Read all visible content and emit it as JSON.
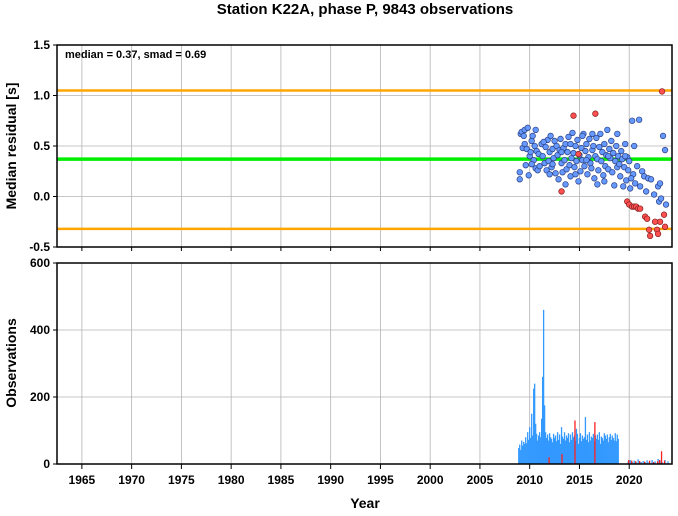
{
  "title": "Station K22A, phase P, 9843 observations",
  "colors": {
    "grid": "#b4b4b4",
    "median_line": "#00ee00",
    "smad_lines": "#ffa500",
    "point_good": "#6699ff",
    "point_outlier": "#ff5050",
    "bars_good": "#3399ff",
    "bars_outlier": "#ff2020"
  },
  "chart_data": [
    {
      "type": "scatter",
      "name": "residuals",
      "ylabel": "Median residual [s]",
      "xlim": [
        1962.5,
        2024.3
      ],
      "ylim": [
        -0.5,
        1.5
      ],
      "y_ticks": [
        "-0.5",
        "0.0",
        "0.5",
        "1.0",
        "1.5"
      ],
      "y_tick_values": [
        -0.5,
        0.0,
        0.5,
        1.0,
        1.5
      ],
      "grid": true,
      "annotation": "median = 0.37, smad = 0.69",
      "median": 0.37,
      "upper_limit": 1.05,
      "lower_limit": -0.32,
      "points_good": [
        [
          2009.0,
          0.17
        ],
        [
          2009.0,
          0.24
        ],
        [
          2009.1,
          0.62
        ],
        [
          2009.2,
          0.64
        ],
        [
          2009.3,
          0.48
        ],
        [
          2009.4,
          0.6
        ],
        [
          2009.5,
          0.66
        ],
        [
          2009.6,
          0.31
        ],
        [
          2009.7,
          0.47
        ],
        [
          2009.8,
          0.68
        ],
        [
          2009.9,
          0.21
        ],
        [
          2010.0,
          0.4
        ],
        [
          2010.1,
          0.44
        ],
        [
          2010.2,
          0.55
        ],
        [
          2010.3,
          0.6
        ],
        [
          2010.4,
          0.36
        ],
        [
          2010.5,
          0.5
        ],
        [
          2010.6,
          0.28
        ],
        [
          2010.7,
          0.45
        ],
        [
          2010.8,
          0.26
        ],
        [
          2010.9,
          0.42
        ],
        [
          2011.0,
          0.3
        ],
        [
          2011.2,
          0.52
        ],
        [
          2011.3,
          0.4
        ],
        [
          2011.5,
          0.33
        ],
        [
          2011.6,
          0.49
        ],
        [
          2011.7,
          0.26
        ],
        [
          2011.8,
          0.56
        ],
        [
          2011.9,
          0.35
        ],
        [
          2012.0,
          0.44
        ],
        [
          2012.1,
          0.6
        ],
        [
          2012.2,
          0.29
        ],
        [
          2012.3,
          0.47
        ],
        [
          2012.4,
          0.38
        ],
        [
          2012.5,
          0.55
        ],
        [
          2012.6,
          0.23
        ],
        [
          2012.7,
          0.5
        ],
        [
          2012.8,
          0.41
        ],
        [
          2012.9,
          0.17
        ],
        [
          2013.0,
          0.46
        ],
        [
          2013.1,
          0.57
        ],
        [
          2013.2,
          0.33
        ],
        [
          2013.3,
          0.24
        ],
        [
          2013.4,
          0.48
        ],
        [
          2013.5,
          0.36
        ],
        [
          2013.6,
          0.52
        ],
        [
          2013.7,
          0.27
        ],
        [
          2013.8,
          0.44
        ],
        [
          2013.9,
          0.59
        ],
        [
          2014.0,
          0.31
        ],
        [
          2014.1,
          0.2
        ],
        [
          2014.2,
          0.38
        ],
        [
          2014.3,
          0.63
        ],
        [
          2014.4,
          0.43
        ],
        [
          2014.5,
          0.29
        ],
        [
          2014.6,
          0.5
        ],
        [
          2014.7,
          0.35
        ],
        [
          2014.8,
          0.56
        ],
        [
          2014.9,
          0.15
        ],
        [
          2015.0,
          0.41
        ],
        [
          2015.1,
          0.25
        ],
        [
          2015.2,
          0.48
        ],
        [
          2015.3,
          0.36
        ],
        [
          2015.4,
          0.62
        ],
        [
          2015.5,
          0.3
        ],
        [
          2015.6,
          0.45
        ],
        [
          2015.7,
          0.52
        ],
        [
          2015.8,
          0.22
        ],
        [
          2015.9,
          0.39
        ],
        [
          2016.0,
          0.57
        ],
        [
          2016.1,
          0.33
        ],
        [
          2016.2,
          0.28
        ],
        [
          2016.3,
          0.46
        ],
        [
          2016.4,
          0.5
        ],
        [
          2016.5,
          0.18
        ],
        [
          2016.6,
          0.4
        ],
        [
          2016.7,
          0.58
        ],
        [
          2016.8,
          0.37
        ],
        [
          2016.9,
          0.26
        ],
        [
          2017.0,
          0.49
        ],
        [
          2017.1,
          0.62
        ],
        [
          2017.2,
          0.35
        ],
        [
          2017.3,
          0.44
        ],
        [
          2017.4,
          0.21
        ],
        [
          2017.5,
          0.52
        ],
        [
          2017.6,
          0.3
        ],
        [
          2017.7,
          0.41
        ],
        [
          2017.8,
          0.66
        ],
        [
          2017.9,
          0.27
        ],
        [
          2018.0,
          0.47
        ],
        [
          2018.1,
          0.38
        ],
        [
          2018.2,
          0.55
        ],
        [
          2018.3,
          0.24
        ],
        [
          2018.4,
          0.43
        ],
        [
          2018.5,
          0.11
        ],
        [
          2018.6,
          0.35
        ],
        [
          2018.7,
          0.5
        ],
        [
          2018.8,
          0.29
        ],
        [
          2018.9,
          0.4
        ],
        [
          2019.0,
          0.32
        ],
        [
          2019.1,
          0.2
        ],
        [
          2019.2,
          0.45
        ],
        [
          2019.3,
          0.37
        ],
        [
          2019.4,
          0.1
        ],
        [
          2019.5,
          0.29
        ],
        [
          2019.6,
          0.52
        ],
        [
          2019.7,
          0.16
        ],
        [
          2019.8,
          0.39
        ],
        [
          2019.9,
          0.26
        ],
        [
          2020.0,
          0.35
        ],
        [
          2020.1,
          0.08
        ],
        [
          2020.3,
          0.75
        ],
        [
          2020.4,
          0.22
        ],
        [
          2020.5,
          0.5
        ],
        [
          2020.6,
          0.13
        ],
        [
          2020.8,
          0.3
        ],
        [
          2021.0,
          0.76
        ],
        [
          2021.1,
          0.1
        ],
        [
          2021.3,
          0.25
        ],
        [
          2021.5,
          0.2
        ],
        [
          2021.7,
          0.05
        ],
        [
          2021.9,
          0.18
        ],
        [
          2022.2,
          0.17
        ],
        [
          2022.5,
          0.02
        ],
        [
          2022.9,
          0.1
        ],
        [
          2023.0,
          -0.05
        ],
        [
          2023.1,
          0.13
        ],
        [
          2023.2,
          -0.02
        ],
        [
          2023.4,
          0.6
        ],
        [
          2023.6,
          0.46
        ],
        [
          2023.7,
          -0.08
        ],
        [
          2012.3,
          0.32
        ],
        [
          2014.6,
          0.22
        ],
        [
          2016.8,
          0.12
        ],
        [
          2010.6,
          0.66
        ],
        [
          2011.4,
          0.54
        ],
        [
          2013.6,
          0.12
        ],
        [
          2015.3,
          0.6
        ],
        [
          2017.5,
          0.15
        ],
        [
          2018.8,
          0.62
        ],
        [
          2019.6,
          0.4
        ],
        [
          2020.2,
          0.18
        ],
        [
          2009.5,
          0.52
        ],
        [
          2010.2,
          0.32
        ],
        [
          2012.0,
          0.22
        ],
        [
          2013.2,
          0.44
        ],
        [
          2014.1,
          0.52
        ],
        [
          2015.7,
          0.36
        ],
        [
          2016.3,
          0.62
        ],
        [
          2017.9,
          0.4
        ]
      ],
      "points_outlier": [
        [
          2013.2,
          0.05
        ],
        [
          2014.4,
          0.8
        ],
        [
          2014.9,
          0.42
        ],
        [
          2016.6,
          0.82
        ],
        [
          2019.8,
          -0.05
        ],
        [
          2020.0,
          -0.08
        ],
        [
          2020.3,
          -0.1
        ],
        [
          2020.5,
          -0.1
        ],
        [
          2020.7,
          -0.1
        ],
        [
          2020.9,
          -0.12
        ],
        [
          2021.1,
          -0.12
        ],
        [
          2021.6,
          -0.2
        ],
        [
          2021.8,
          -0.22
        ],
        [
          2022.0,
          -0.33
        ],
        [
          2022.1,
          -0.39
        ],
        [
          2022.8,
          -0.33
        ],
        [
          2022.9,
          -0.37
        ],
        [
          2023.1,
          -0.25
        ],
        [
          2023.3,
          1.04
        ],
        [
          2023.5,
          -0.18
        ],
        [
          2023.6,
          -0.3
        ],
        [
          2022.6,
          -0.25
        ]
      ]
    },
    {
      "type": "bar",
      "name": "observations",
      "xlabel": "Year",
      "ylabel": "Observations",
      "xlim": [
        1962.5,
        2024.3
      ],
      "ylim": [
        0,
        600
      ],
      "x_ticks": [
        "1965",
        "1970",
        "1975",
        "1980",
        "1985",
        "1990",
        "1995",
        "2000",
        "2005",
        "2010",
        "2015",
        "2020"
      ],
      "x_tick_values": [
        1965,
        1970,
        1975,
        1980,
        1985,
        1990,
        1995,
        2000,
        2005,
        2010,
        2015,
        2020
      ],
      "y_ticks": [
        "0",
        "200",
        "400",
        "600"
      ],
      "y_tick_values": [
        0,
        200,
        400,
        600
      ],
      "grid": true,
      "bars_good": [
        [
          2008.9,
          48
        ],
        [
          2009.0,
          58
        ],
        [
          2009.1,
          42
        ],
        [
          2009.2,
          70
        ],
        [
          2009.3,
          55
        ],
        [
          2009.4,
          66
        ],
        [
          2009.5,
          60
        ],
        [
          2009.6,
          80
        ],
        [
          2009.7,
          62
        ],
        [
          2009.8,
          95
        ],
        [
          2009.9,
          72
        ],
        [
          2010.0,
          110
        ],
        [
          2010.1,
          78
        ],
        [
          2010.2,
          150
        ],
        [
          2010.3,
          85
        ],
        [
          2010.4,
          225
        ],
        [
          2010.5,
          240
        ],
        [
          2010.6,
          120
        ],
        [
          2010.7,
          90
        ],
        [
          2010.8,
          70
        ],
        [
          2010.9,
          85
        ],
        [
          2011.0,
          95
        ],
        [
          2011.1,
          80
        ],
        [
          2011.2,
          135
        ],
        [
          2011.3,
          260
        ],
        [
          2011.4,
          460
        ],
        [
          2011.5,
          175
        ],
        [
          2011.6,
          95
        ],
        [
          2011.7,
          78
        ],
        [
          2011.8,
          88
        ],
        [
          2011.9,
          70
        ],
        [
          2012.0,
          92
        ],
        [
          2012.1,
          80
        ],
        [
          2012.2,
          75
        ],
        [
          2012.3,
          65
        ],
        [
          2012.4,
          90
        ],
        [
          2012.5,
          78
        ],
        [
          2012.6,
          85
        ],
        [
          2012.7,
          68
        ],
        [
          2012.8,
          95
        ],
        [
          2012.9,
          72
        ],
        [
          2013.0,
          88
        ],
        [
          2013.1,
          60
        ],
        [
          2013.2,
          110
        ],
        [
          2013.3,
          82
        ],
        [
          2013.4,
          75
        ],
        [
          2013.5,
          95
        ],
        [
          2013.6,
          70
        ],
        [
          2013.7,
          85
        ],
        [
          2013.8,
          78
        ],
        [
          2013.9,
          92
        ],
        [
          2014.0,
          65
        ],
        [
          2014.1,
          88
        ],
        [
          2014.2,
          72
        ],
        [
          2014.3,
          95
        ],
        [
          2014.4,
          80
        ],
        [
          2014.5,
          85
        ],
        [
          2014.6,
          70
        ],
        [
          2014.7,
          105
        ],
        [
          2014.8,
          90
        ],
        [
          2014.9,
          60
        ],
        [
          2015.0,
          78
        ],
        [
          2015.1,
          92
        ],
        [
          2015.2,
          68
        ],
        [
          2015.3,
          85
        ],
        [
          2015.4,
          75
        ],
        [
          2015.5,
          80
        ],
        [
          2015.6,
          140
        ],
        [
          2015.7,
          72
        ],
        [
          2015.8,
          88
        ],
        [
          2015.9,
          65
        ],
        [
          2016.0,
          95
        ],
        [
          2016.1,
          70
        ],
        [
          2016.2,
          82
        ],
        [
          2016.3,
          78
        ],
        [
          2016.4,
          90
        ],
        [
          2016.5,
          68
        ],
        [
          2016.6,
          85
        ],
        [
          2016.7,
          75
        ],
        [
          2016.8,
          88
        ],
        [
          2016.9,
          72
        ],
        [
          2017.0,
          95
        ],
        [
          2017.1,
          60
        ],
        [
          2017.2,
          82
        ],
        [
          2017.3,
          78
        ],
        [
          2017.4,
          70
        ],
        [
          2017.5,
          92
        ],
        [
          2017.6,
          85
        ],
        [
          2017.7,
          75
        ],
        [
          2017.8,
          88
        ],
        [
          2017.9,
          65
        ],
        [
          2018.0,
          80
        ],
        [
          2018.1,
          90
        ],
        [
          2018.2,
          72
        ],
        [
          2018.3,
          85
        ],
        [
          2018.4,
          78
        ],
        [
          2018.5,
          70
        ],
        [
          2018.6,
          92
        ],
        [
          2018.7,
          68
        ],
        [
          2018.8,
          88
        ],
        [
          2018.9,
          75
        ],
        [
          2019.9,
          8
        ],
        [
          2020.1,
          12
        ],
        [
          2020.3,
          6
        ],
        [
          2020.5,
          10
        ],
        [
          2020.7,
          5
        ],
        [
          2020.9,
          14
        ],
        [
          2021.2,
          6
        ],
        [
          2021.4,
          9
        ],
        [
          2021.6,
          5
        ],
        [
          2021.8,
          11
        ],
        [
          2022.0,
          7
        ],
        [
          2022.3,
          12
        ],
        [
          2022.6,
          8
        ],
        [
          2022.9,
          15
        ],
        [
          2023.1,
          10
        ],
        [
          2023.3,
          6
        ],
        [
          2023.6,
          12
        ],
        [
          2023.9,
          8
        ]
      ],
      "bars_outlier": [
        [
          2014.55,
          130
        ],
        [
          2016.55,
          125
        ],
        [
          2013.25,
          30
        ],
        [
          2011.95,
          20
        ],
        [
          2019.95,
          12
        ],
        [
          2020.25,
          10
        ],
        [
          2020.65,
          8
        ],
        [
          2021.05,
          9
        ],
        [
          2021.55,
          7
        ],
        [
          2022.05,
          10
        ],
        [
          2022.45,
          6
        ],
        [
          2022.85,
          8
        ],
        [
          2023.05,
          12
        ],
        [
          2023.25,
          38
        ],
        [
          2023.55,
          10
        ]
      ]
    }
  ]
}
